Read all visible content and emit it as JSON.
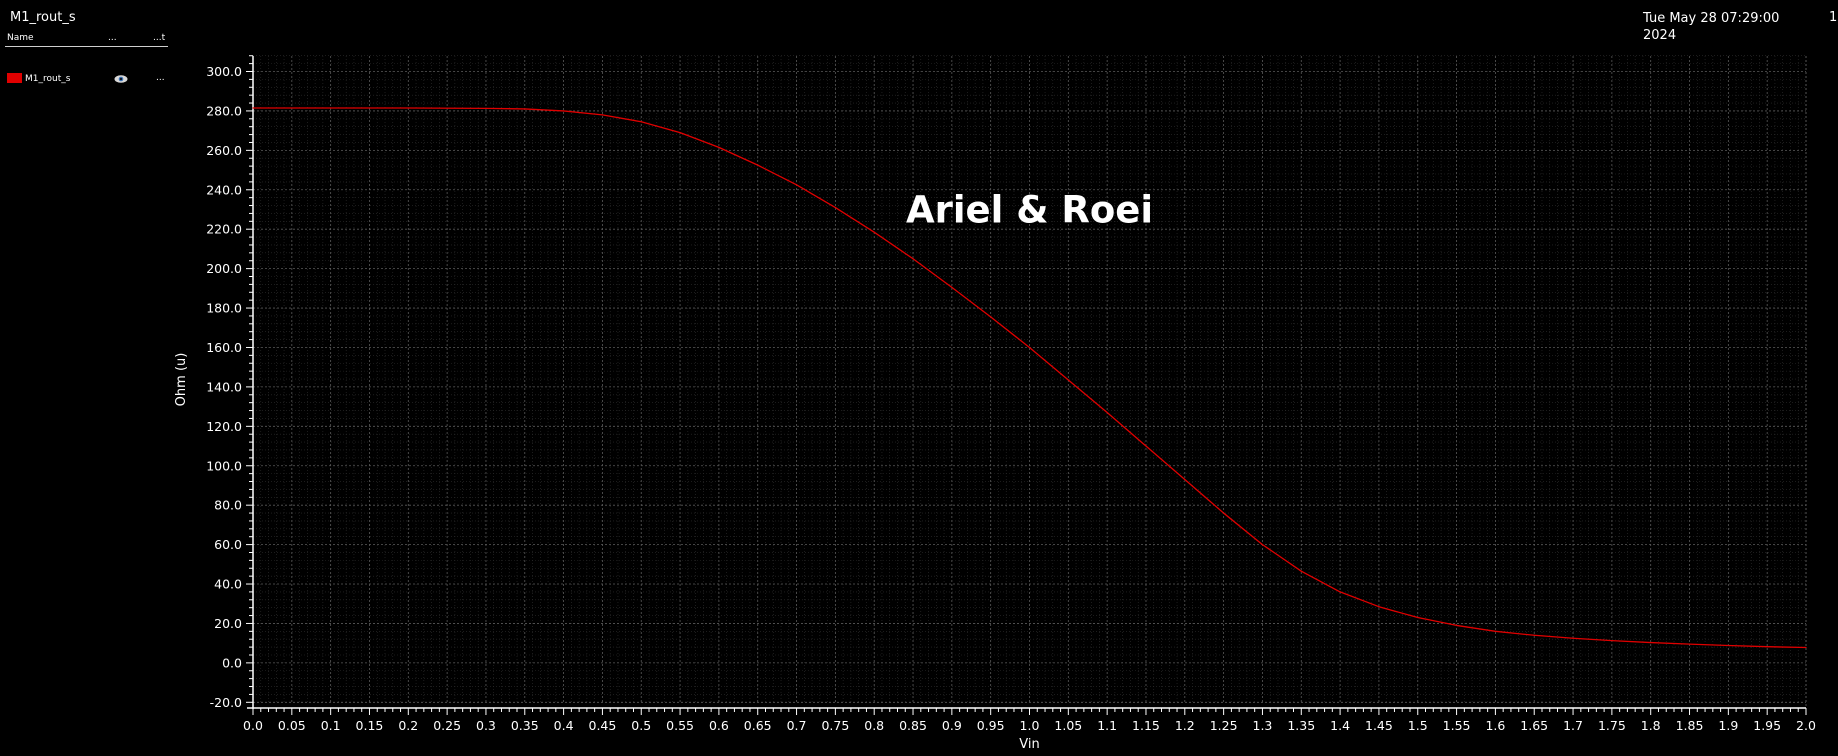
{
  "window": {
    "title": "M1_rout_s",
    "timestamp_line1": "Tue May 28 07:29:00",
    "timestamp_line2": "2024",
    "page_number": "1"
  },
  "legend": {
    "headers": [
      "Name",
      "...",
      "...t"
    ],
    "entries": [
      {
        "name": "M1_rout_s",
        "color": "#e00000",
        "visibility_icon": "eye-icon",
        "more": "..."
      }
    ]
  },
  "colors": {
    "background": "#000000",
    "trace": "#e00000",
    "grid_major": "#5a5a5a",
    "grid_minor": "#2e2e2e",
    "axis": "#ffffff"
  },
  "chart_data": {
    "type": "line",
    "title": "",
    "xlabel": "Vin",
    "ylabel": "Ohm (u)",
    "xlim": [
      0.0,
      2.0
    ],
    "ylim": [
      -20.0,
      310.0
    ],
    "grid": true,
    "legend_position": "top-left",
    "annotations": [
      {
        "text": "Ariel & Roei",
        "x": 1.0,
        "y": 230.0
      }
    ],
    "x_tick_labels": [
      "0.0",
      "0.05",
      "0.1",
      "0.15",
      "0.2",
      "0.25",
      "0.3",
      "0.35",
      "0.4",
      "0.45",
      "0.5",
      "0.55",
      "0.6",
      "0.65",
      "0.7",
      "0.75",
      "0.8",
      "0.85",
      "0.9",
      "0.95",
      "1.0",
      "1.05",
      "1.1",
      "1.15",
      "1.2",
      "1.25",
      "1.3",
      "1.35",
      "1.4",
      "1.45",
      "1.5",
      "1.55",
      "1.6",
      "1.65",
      "1.7",
      "1.75",
      "1.8",
      "1.85",
      "1.9",
      "1.95",
      "2.0"
    ],
    "y_tick_labels": [
      "-20.0",
      "0.0",
      "20.0",
      "40.0",
      "60.0",
      "80.0",
      "100.0",
      "120.0",
      "140.0",
      "160.0",
      "180.0",
      "200.0",
      "220.0",
      "240.0",
      "260.0",
      "280.0",
      "300.0"
    ],
    "series": [
      {
        "name": "M1_rout_s",
        "x": [
          0.0,
          0.1,
          0.2,
          0.3,
          0.35,
          0.4,
          0.45,
          0.5,
          0.55,
          0.6,
          0.65,
          0.7,
          0.75,
          0.8,
          0.85,
          0.9,
          0.95,
          1.0,
          1.05,
          1.1,
          1.15,
          1.2,
          1.25,
          1.3,
          1.35,
          1.4,
          1.45,
          1.5,
          1.55,
          1.6,
          1.65,
          1.7,
          1.75,
          1.8,
          1.85,
          1.9,
          1.95,
          2.0
        ],
        "y": [
          281.5,
          281.5,
          281.5,
          281.3,
          281.0,
          280.0,
          278.0,
          274.5,
          269.0,
          261.5,
          252.5,
          242.5,
          231.0,
          218.5,
          205.0,
          190.5,
          175.5,
          160.0,
          143.5,
          127.0,
          110.0,
          93.0,
          76.0,
          60.0,
          46.5,
          36.0,
          28.5,
          23.0,
          19.0,
          16.0,
          14.0,
          12.5,
          11.3,
          10.3,
          9.5,
          8.8,
          8.2,
          7.8
        ]
      }
    ]
  }
}
